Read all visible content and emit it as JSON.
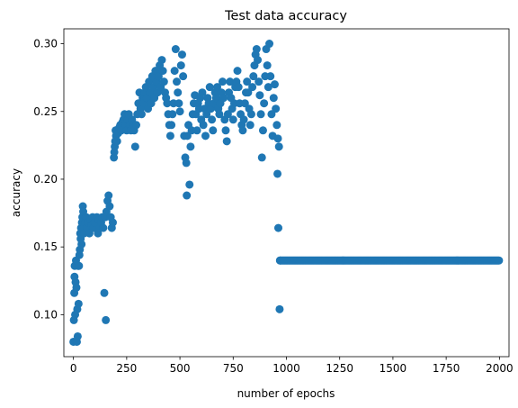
{
  "chart_data": {
    "type": "scatter",
    "title": "Test data accuracy",
    "xlabel": "number of epochs",
    "ylabel": "accuracy",
    "xlim": [
      -45,
      2045
    ],
    "ylim": [
      0.069,
      0.311
    ],
    "xticks": [
      0,
      250,
      500,
      750,
      1000,
      1250,
      1500,
      1750,
      2000
    ],
    "yticks": [
      0.1,
      0.15,
      0.2,
      0.25,
      0.3
    ],
    "xtick_labels": [
      "0",
      "250",
      "500",
      "750",
      "1000",
      "1250",
      "1500",
      "1750",
      "2000"
    ],
    "ytick_labels": [
      "0.10",
      "0.15",
      "0.20",
      "0.25",
      "0.30"
    ],
    "grid": false,
    "marker_color": "#1f77b4",
    "series": [
      {
        "points": [
          [
            0,
            0.08
          ],
          [
            2,
            0.096
          ],
          [
            4,
            0.116
          ],
          [
            5,
            0.128
          ],
          [
            6,
            0.136
          ],
          [
            8,
            0.1
          ],
          [
            10,
            0.124
          ],
          [
            12,
            0.14
          ],
          [
            14,
            0.12
          ],
          [
            16,
            0.08
          ],
          [
            18,
            0.104
          ],
          [
            20,
            0.084
          ],
          [
            22,
            0.136
          ],
          [
            24,
            0.108
          ],
          [
            26,
            0.136
          ],
          [
            28,
            0.144
          ],
          [
            30,
            0.148
          ],
          [
            32,
            0.16
          ],
          [
            34,
            0.156
          ],
          [
            36,
            0.164
          ],
          [
            38,
            0.152
          ],
          [
            40,
            0.168
          ],
          [
            42,
            0.172
          ],
          [
            44,
            0.18
          ],
          [
            46,
            0.176
          ],
          [
            48,
            0.164
          ],
          [
            50,
            0.16
          ],
          [
            55,
            0.168
          ],
          [
            60,
            0.172
          ],
          [
            65,
            0.164
          ],
          [
            70,
            0.168
          ],
          [
            75,
            0.16
          ],
          [
            80,
            0.17
          ],
          [
            85,
            0.166
          ],
          [
            90,
            0.172
          ],
          [
            95,
            0.164
          ],
          [
            100,
            0.168
          ],
          [
            110,
            0.172
          ],
          [
            115,
            0.16
          ],
          [
            120,
            0.17
          ],
          [
            125,
            0.164
          ],
          [
            130,
            0.168
          ],
          [
            135,
            0.172
          ],
          [
            140,
            0.164
          ],
          [
            145,
            0.116
          ],
          [
            150,
            0.172
          ],
          [
            152,
            0.096
          ],
          [
            155,
            0.176
          ],
          [
            160,
            0.184
          ],
          [
            165,
            0.188
          ],
          [
            170,
            0.18
          ],
          [
            175,
            0.172
          ],
          [
            180,
            0.164
          ],
          [
            185,
            0.168
          ],
          [
            190,
            0.216
          ],
          [
            192,
            0.22
          ],
          [
            194,
            0.224
          ],
          [
            196,
            0.228
          ],
          [
            198,
            0.236
          ],
          [
            200,
            0.232
          ],
          [
            205,
            0.228
          ],
          [
            210,
            0.234
          ],
          [
            215,
            0.238
          ],
          [
            220,
            0.24
          ],
          [
            225,
            0.236
          ],
          [
            230,
            0.242
          ],
          [
            235,
            0.244
          ],
          [
            240,
            0.248
          ],
          [
            245,
            0.24
          ],
          [
            250,
            0.236
          ],
          [
            255,
            0.244
          ],
          [
            260,
            0.248
          ],
          [
            265,
            0.24
          ],
          [
            270,
            0.236
          ],
          [
            275,
            0.244
          ],
          [
            280,
            0.24
          ],
          [
            285,
            0.236
          ],
          [
            290,
            0.224
          ],
          [
            295,
            0.24
          ],
          [
            300,
            0.248
          ],
          [
            305,
            0.256
          ],
          [
            310,
            0.264
          ],
          [
            315,
            0.252
          ],
          [
            320,
            0.248
          ],
          [
            325,
            0.26
          ],
          [
            330,
            0.256
          ],
          [
            335,
            0.264
          ],
          [
            340,
            0.268
          ],
          [
            345,
            0.26
          ],
          [
            350,
            0.252
          ],
          [
            355,
            0.272
          ],
          [
            360,
            0.264
          ],
          [
            365,
            0.256
          ],
          [
            370,
            0.276
          ],
          [
            375,
            0.268
          ],
          [
            380,
            0.26
          ],
          [
            385,
            0.28
          ],
          [
            390,
            0.272
          ],
          [
            395,
            0.264
          ],
          [
            400,
            0.276
          ],
          [
            405,
            0.284
          ],
          [
            410,
            0.268
          ],
          [
            415,
            0.288
          ],
          [
            420,
            0.28
          ],
          [
            425,
            0.272
          ],
          [
            430,
            0.264
          ],
          [
            435,
            0.26
          ],
          [
            440,
            0.256
          ],
          [
            445,
            0.248
          ],
          [
            450,
            0.24
          ],
          [
            455,
            0.232
          ],
          [
            460,
            0.24
          ],
          [
            465,
            0.248
          ],
          [
            470,
            0.256
          ],
          [
            475,
            0.28
          ],
          [
            480,
            0.296
          ],
          [
            485,
            0.272
          ],
          [
            490,
            0.264
          ],
          [
            495,
            0.256
          ],
          [
            500,
            0.25
          ],
          [
            505,
            0.284
          ],
          [
            510,
            0.292
          ],
          [
            515,
            0.276
          ],
          [
            520,
            0.232
          ],
          [
            525,
            0.216
          ],
          [
            530,
            0.212
          ],
          [
            532,
            0.188
          ],
          [
            535,
            0.232
          ],
          [
            540,
            0.24
          ],
          [
            545,
            0.196
          ],
          [
            550,
            0.224
          ],
          [
            555,
            0.236
          ],
          [
            560,
            0.248
          ],
          [
            565,
            0.256
          ],
          [
            570,
            0.262
          ],
          [
            575,
            0.248
          ],
          [
            580,
            0.236
          ],
          [
            585,
            0.256
          ],
          [
            590,
            0.252
          ],
          [
            595,
            0.26
          ],
          [
            600,
            0.244
          ],
          [
            605,
            0.264
          ],
          [
            610,
            0.24
          ],
          [
            615,
            0.252
          ],
          [
            620,
            0.232
          ],
          [
            625,
            0.248
          ],
          [
            630,
            0.26
          ],
          [
            635,
            0.256
          ],
          [
            640,
            0.268
          ],
          [
            645,
            0.252
          ],
          [
            650,
            0.244
          ],
          [
            655,
            0.236
          ],
          [
            660,
            0.256
          ],
          [
            665,
            0.264
          ],
          [
            670,
            0.26
          ],
          [
            675,
            0.268
          ],
          [
            680,
            0.252
          ],
          [
            685,
            0.248
          ],
          [
            690,
            0.256
          ],
          [
            695,
            0.264
          ],
          [
            700,
            0.272
          ],
          [
            705,
            0.26
          ],
          [
            710,
            0.244
          ],
          [
            715,
            0.236
          ],
          [
            720,
            0.228
          ],
          [
            725,
            0.248
          ],
          [
            730,
            0.264
          ],
          [
            735,
            0.272
          ],
          [
            740,
            0.26
          ],
          [
            745,
            0.252
          ],
          [
            750,
            0.244
          ],
          [
            755,
            0.256
          ],
          [
            760,
            0.268
          ],
          [
            765,
            0.272
          ],
          [
            770,
            0.28
          ],
          [
            775,
            0.268
          ],
          [
            780,
            0.256
          ],
          [
            785,
            0.248
          ],
          [
            790,
            0.24
          ],
          [
            795,
            0.236
          ],
          [
            800,
            0.244
          ],
          [
            805,
            0.256
          ],
          [
            810,
            0.264
          ],
          [
            815,
            0.272
          ],
          [
            820,
            0.264
          ],
          [
            825,
            0.252
          ],
          [
            830,
            0.24
          ],
          [
            835,
            0.248
          ],
          [
            840,
            0.268
          ],
          [
            845,
            0.276
          ],
          [
            850,
            0.284
          ],
          [
            855,
            0.292
          ],
          [
            860,
            0.296
          ],
          [
            865,
            0.288
          ],
          [
            870,
            0.272
          ],
          [
            875,
            0.262
          ],
          [
            880,
            0.248
          ],
          [
            885,
            0.216
          ],
          [
            890,
            0.236
          ],
          [
            895,
            0.256
          ],
          [
            900,
            0.276
          ],
          [
            905,
            0.296
          ],
          [
            910,
            0.284
          ],
          [
            915,
            0.268
          ],
          [
            920,
            0.3
          ],
          [
            925,
            0.276
          ],
          [
            930,
            0.248
          ],
          [
            935,
            0.232
          ],
          [
            940,
            0.26
          ],
          [
            945,
            0.27
          ],
          [
            950,
            0.252
          ],
          [
            955,
            0.24
          ],
          [
            958,
            0.204
          ],
          [
            960,
            0.23
          ],
          [
            962,
            0.164
          ],
          [
            965,
            0.224
          ],
          [
            968,
            0.104
          ],
          [
            970,
            0.14
          ]
        ],
        "constant_segment": {
          "x_start": 970,
          "x_end": 2000,
          "step": 4,
          "y": 0.14
        }
      }
    ]
  }
}
